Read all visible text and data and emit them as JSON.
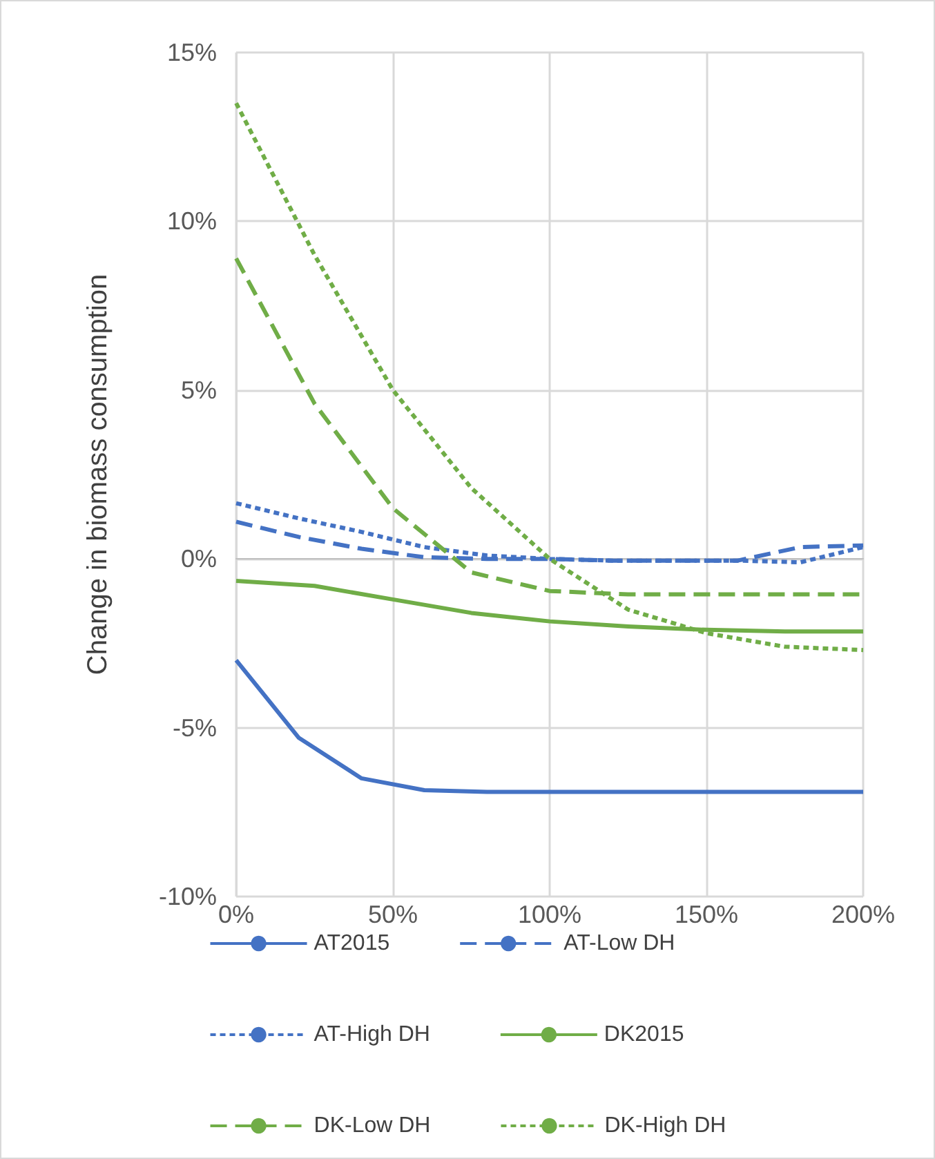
{
  "chart_data": {
    "type": "line",
    "ylabel": "Change in biomass consumption",
    "xlim": [
      0,
      200
    ],
    "xticks": [
      {
        "value": 0,
        "label": "0%"
      },
      {
        "value": 50,
        "label": "50%"
      },
      {
        "value": 100,
        "label": "100%"
      },
      {
        "value": 150,
        "label": "150%"
      },
      {
        "value": 200,
        "label": "200%"
      }
    ],
    "ylim": [
      -10,
      15
    ],
    "yticks": [
      {
        "value": -10,
        "label": "-10%"
      },
      {
        "value": -5,
        "label": "-5%"
      },
      {
        "value": 0,
        "label": "0%"
      },
      {
        "value": 5,
        "label": "5%"
      },
      {
        "value": 10,
        "label": "10%"
      },
      {
        "value": 15,
        "label": "15%"
      }
    ],
    "grid": true,
    "legend": "bottom",
    "marker": "none",
    "series": [
      {
        "name": "AT2015",
        "color": "#4472c4",
        "line_style": "solid",
        "x": [
          0,
          20,
          40,
          60,
          80,
          100,
          120,
          140,
          160,
          180,
          200
        ],
        "values": [
          -3.0,
          -5.3,
          -6.5,
          -6.85,
          -6.9,
          -6.9,
          -6.9,
          -6.9,
          -6.9,
          -6.9,
          -6.9
        ]
      },
      {
        "name": "AT-Low DH",
        "color": "#4472c4",
        "line_style": "dashed",
        "x": [
          0,
          20,
          40,
          60,
          80,
          100,
          120,
          140,
          160,
          180,
          200
        ],
        "values": [
          1.1,
          0.65,
          0.3,
          0.05,
          0,
          0,
          -0.05,
          -0.05,
          -0.05,
          0.35,
          0.4
        ]
      },
      {
        "name": "AT-High DH",
        "color": "#4472c4",
        "line_style": "dotted",
        "x": [
          0,
          20,
          40,
          60,
          80,
          100,
          120,
          140,
          160,
          180,
          200
        ],
        "values": [
          1.65,
          1.2,
          0.8,
          0.35,
          0.1,
          0,
          -0.05,
          -0.05,
          -0.05,
          -0.1,
          0.35
        ]
      },
      {
        "name": "DK2015",
        "color": "#70ad47",
        "line_style": "solid",
        "x": [
          0,
          25,
          50,
          75,
          100,
          125,
          150,
          175,
          200
        ],
        "values": [
          -0.65,
          -0.8,
          -1.2,
          -1.6,
          -1.85,
          -2.0,
          -2.1,
          -2.15,
          -2.15
        ]
      },
      {
        "name": "DK-Low DH",
        "color": "#70ad47",
        "line_style": "dashed",
        "x": [
          0,
          25,
          50,
          75,
          100,
          125,
          150,
          175,
          200
        ],
        "values": [
          8.9,
          4.6,
          1.5,
          -0.4,
          -0.95,
          -1.05,
          -1.05,
          -1.05,
          -1.05
        ]
      },
      {
        "name": "DK-High DH",
        "color": "#70ad47",
        "line_style": "dotted",
        "x": [
          0,
          25,
          50,
          75,
          100,
          125,
          150,
          175,
          200
        ],
        "values": [
          13.5,
          9.0,
          5.0,
          2.1,
          0,
          -1.5,
          -2.2,
          -2.6,
          -2.7
        ]
      }
    ]
  }
}
